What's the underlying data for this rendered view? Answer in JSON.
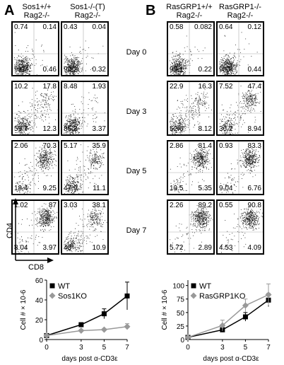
{
  "panels": [
    {
      "letter": "A",
      "columns": [
        {
          "line1": "Sos1+/+",
          "line2": "Rag2-/-"
        },
        {
          "line1": "Sos1-/-(T)",
          "line2": "Rag2-/-"
        }
      ]
    },
    {
      "letter": "B",
      "columns": [
        {
          "line1": "RasGRP1+/+",
          "line2": "Rag2-/-"
        },
        {
          "line1": "RasGRP1-/-",
          "line2": "Rag2-/-"
        }
      ]
    }
  ],
  "days": [
    "Day 0",
    "Day 3",
    "Day 5",
    "Day 7"
  ],
  "axes": {
    "y": "CD4",
    "x": "CD8"
  },
  "facs": [
    [
      {
        "ul": "0.74",
        "ur": "0.14",
        "ll": "98.7",
        "lr": "0.46"
      },
      {
        "ul": "0.43",
        "ur": "0.04",
        "ll": "99.2",
        "lr": "0.32"
      },
      {
        "ul": "0.58",
        "ur": "0.082",
        "ll": "99.1",
        "lr": "0.22"
      },
      {
        "ul": "0.64",
        "ur": "0.12",
        "ll": "98.8",
        "lr": "0.44"
      }
    ],
    [
      {
        "ul": "10.2",
        "ur": "17.8",
        "ll": "59.7",
        "lr": "12.3"
      },
      {
        "ul": "8.48",
        "ur": "1.93",
        "ll": "86.2",
        "lr": "3.37"
      },
      {
        "ul": "22.9",
        "ur": "16.3",
        "ll": "52.6",
        "lr": "8.12"
      },
      {
        "ul": "7.52",
        "ur": "47.4",
        "ll": "36.2",
        "lr": "8.94"
      }
    ],
    [
      {
        "ul": "2.06",
        "ur": "70.3",
        "ll": "18.4",
        "lr": "9.25"
      },
      {
        "ul": "5.17",
        "ur": "35.9",
        "ll": "47.9",
        "lr": "11.1"
      },
      {
        "ul": "2.86",
        "ur": "81.4",
        "ll": "10.5",
        "lr": "5.35"
      },
      {
        "ul": "0.93",
        "ur": "83.3",
        "ll": "9.04",
        "lr": "6.76"
      }
    ],
    [
      {
        "ul": "1.02",
        "ur": "87",
        "ll": "8.04",
        "lr": "3.97"
      },
      {
        "ul": "3.03",
        "ur": "38.1",
        "ll": "48",
        "lr": "10.9"
      },
      {
        "ul": "2.26",
        "ur": "89.2",
        "ll": "5.72",
        "lr": "2.89"
      },
      {
        "ul": "0.55",
        "ur": "90.8",
        "ll": "4.53",
        "lr": "4.09"
      }
    ]
  ],
  "chart_data": [
    {
      "type": "line",
      "ylabel": "Cell # × 10-6",
      "xlabel": "days post α-CD3ε",
      "x": [
        0,
        3,
        5,
        7
      ],
      "xticks": [
        "0",
        "3",
        "5",
        "7"
      ],
      "yticks": [
        "0",
        "20",
        "40",
        "60"
      ],
      "ylim": [
        0,
        60
      ],
      "legend_position": "top-left",
      "series": [
        {
          "name": "WT",
          "marker": "square",
          "color": "#000000",
          "values": [
            4,
            15,
            26,
            44
          ],
          "errors": [
            1,
            2,
            5,
            14
          ]
        },
        {
          "name": "Sos1KO",
          "marker": "diamond",
          "color": "#999999",
          "values": [
            4,
            9,
            10,
            13
          ],
          "errors": [
            1,
            1,
            1,
            3
          ]
        }
      ]
    },
    {
      "type": "line",
      "ylabel": "Cell # × 10-6",
      "xlabel": "days post α-CD3ε",
      "x": [
        0,
        3,
        5,
        7
      ],
      "xticks": [
        "0",
        "3",
        "5",
        "7"
      ],
      "yticks": [
        "0",
        "25",
        "50",
        "75",
        "100"
      ],
      "ylim": [
        0,
        110
      ],
      "legend_position": "top-left",
      "series": [
        {
          "name": "WT",
          "marker": "square",
          "color": "#000000",
          "values": [
            4,
            18,
            42,
            73
          ],
          "errors": [
            1,
            4,
            8,
            12
          ]
        },
        {
          "name": "RasGRP1KO",
          "marker": "diamond",
          "color": "#999999",
          "values": [
            4,
            26,
            63,
            83
          ],
          "errors": [
            1,
            10,
            12,
            20
          ]
        }
      ]
    }
  ]
}
